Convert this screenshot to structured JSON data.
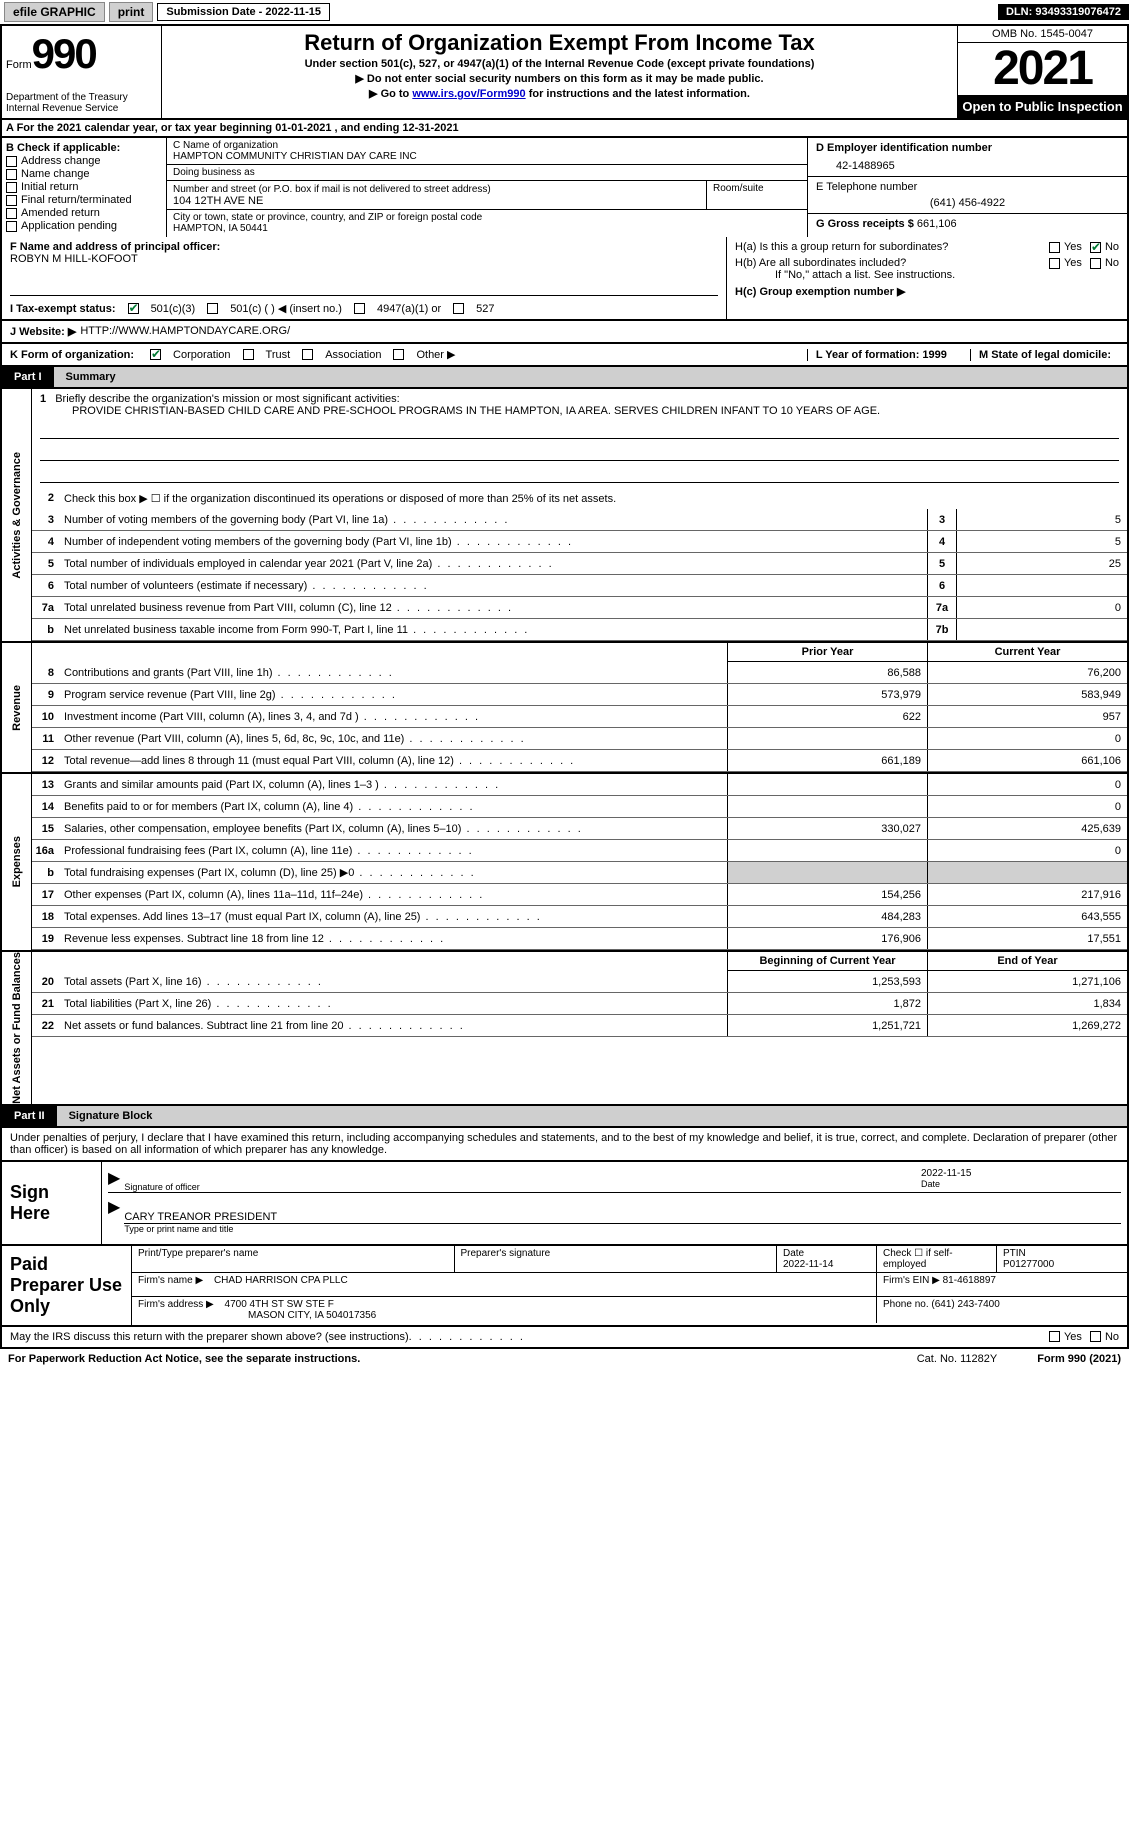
{
  "topbar": {
    "efile": "efile GRAPHIC",
    "print": "print",
    "submission_label": "Submission Date - 2022-11-15",
    "dln": "DLN: 93493319076472"
  },
  "header": {
    "form_label": "Form",
    "form_number": "990",
    "dept": "Department of the Treasury Internal Revenue Service",
    "title": "Return of Organization Exempt From Income Tax",
    "subtitle1": "Under section 501(c), 527, or 4947(a)(1) of the Internal Revenue Code (except private foundations)",
    "subtitle2": "▶ Do not enter social security numbers on this form as it may be made public.",
    "subtitle3_prefix": "▶ Go to ",
    "subtitle3_link": "www.irs.gov/Form990",
    "subtitle3_suffix": " for instructions and the latest information.",
    "omb": "OMB No. 1545-0047",
    "year": "2021",
    "open_public": "Open to Public Inspection"
  },
  "row_a": "A For the 2021 calendar year, or tax year beginning 01-01-2021    , and ending 12-31-2021",
  "section_b": {
    "label": "B Check if applicable:",
    "opts": [
      "Address change",
      "Name change",
      "Initial return",
      "Final return/terminated",
      "Amended return",
      "Application pending"
    ]
  },
  "section_c": {
    "name_label": "C Name of organization",
    "name": "HAMPTON COMMUNITY CHRISTIAN DAY CARE INC",
    "dba_label": "Doing business as",
    "dba": "",
    "addr_label": "Number and street (or P.O. box if mail is not delivered to street address)",
    "addr": "104 12TH AVE NE",
    "room_label": "Room/suite",
    "city_label": "City or town, state or province, country, and ZIP or foreign postal code",
    "city": "HAMPTON, IA  50441"
  },
  "section_d": {
    "ein_label": "D Employer identification number",
    "ein": "42-1488965",
    "phone_label": "E Telephone number",
    "phone": "(641) 456-4922",
    "gross_label": "G Gross receipts $",
    "gross": "661,106"
  },
  "section_f": {
    "label": "F Name and address of principal officer:",
    "name": "ROBYN M HILL-KOFOOT"
  },
  "section_h": {
    "ha": "H(a)  Is this a group return for subordinates?",
    "hb": "H(b)  Are all subordinates included?",
    "hb_note": "If \"No,\" attach a list. See instructions.",
    "hc": "H(c)  Group exemption number ▶",
    "yes": "Yes",
    "no": "No"
  },
  "section_i": {
    "label": "I    Tax-exempt status:",
    "opts": [
      "501(c)(3)",
      "501(c) (  ) ◀ (insert no.)",
      "4947(a)(1) or",
      "527"
    ]
  },
  "section_j": {
    "label": "J   Website: ▶",
    "url": "HTTP://WWW.HAMPTONDAYCARE.ORG/"
  },
  "section_k": {
    "label": "K Form of organization:",
    "opts": [
      "Corporation",
      "Trust",
      "Association",
      "Other ▶"
    ],
    "l": "L Year of formation: 1999",
    "m": "M State of legal domicile:"
  },
  "part1": {
    "num": "Part I",
    "title": "Summary"
  },
  "mission": {
    "num": "1",
    "label": "Briefly describe the organization's mission or most significant activities:",
    "text": "PROVIDE CHRISTIAN-BASED CHILD CARE AND PRE-SCHOOL PROGRAMS IN THE HAMPTON, IA AREA. SERVES CHILDREN INFANT TO 10 YEARS OF AGE."
  },
  "activities": {
    "tab": "Activities & Governance",
    "l2": "Check this box ▶ ☐  if the organization discontinued its operations or disposed of more than 25% of its net assets.",
    "lines": [
      {
        "n": "3",
        "t": "Number of voting members of the governing body (Part VI, line 1a)",
        "b": "3",
        "v": "5"
      },
      {
        "n": "4",
        "t": "Number of independent voting members of the governing body (Part VI, line 1b)",
        "b": "4",
        "v": "5"
      },
      {
        "n": "5",
        "t": "Total number of individuals employed in calendar year 2021 (Part V, line 2a)",
        "b": "5",
        "v": "25"
      },
      {
        "n": "6",
        "t": "Total number of volunteers (estimate if necessary)",
        "b": "6",
        "v": ""
      },
      {
        "n": "7a",
        "t": "Total unrelated business revenue from Part VIII, column (C), line 12",
        "b": "7a",
        "v": "0"
      },
      {
        "n": "b",
        "t": "Net unrelated business taxable income from Form 990-T, Part I, line 11",
        "b": "7b",
        "v": ""
      }
    ]
  },
  "revenue": {
    "tab": "Revenue",
    "hdr_prior": "Prior Year",
    "hdr_current": "Current Year",
    "lines": [
      {
        "n": "8",
        "t": "Contributions and grants (Part VIII, line 1h)",
        "p": "86,588",
        "c": "76,200"
      },
      {
        "n": "9",
        "t": "Program service revenue (Part VIII, line 2g)",
        "p": "573,979",
        "c": "583,949"
      },
      {
        "n": "10",
        "t": "Investment income (Part VIII, column (A), lines 3, 4, and 7d )",
        "p": "622",
        "c": "957"
      },
      {
        "n": "11",
        "t": "Other revenue (Part VIII, column (A), lines 5, 6d, 8c, 9c, 10c, and 11e)",
        "p": "",
        "c": "0"
      },
      {
        "n": "12",
        "t": "Total revenue—add lines 8 through 11 (must equal Part VIII, column (A), line 12)",
        "p": "661,189",
        "c": "661,106"
      }
    ]
  },
  "expenses": {
    "tab": "Expenses",
    "lines": [
      {
        "n": "13",
        "t": "Grants and similar amounts paid (Part IX, column (A), lines 1–3 )",
        "p": "",
        "c": "0"
      },
      {
        "n": "14",
        "t": "Benefits paid to or for members (Part IX, column (A), line 4)",
        "p": "",
        "c": "0"
      },
      {
        "n": "15",
        "t": "Salaries, other compensation, employee benefits (Part IX, column (A), lines 5–10)",
        "p": "330,027",
        "c": "425,639"
      },
      {
        "n": "16a",
        "t": "Professional fundraising fees (Part IX, column (A), line 11e)",
        "p": "",
        "c": "0"
      },
      {
        "n": "b",
        "t": "Total fundraising expenses (Part IX, column (D), line 25) ▶0",
        "p": "SHADE",
        "c": "SHADE"
      },
      {
        "n": "17",
        "t": "Other expenses (Part IX, column (A), lines 11a–11d, 11f–24e)",
        "p": "154,256",
        "c": "217,916"
      },
      {
        "n": "18",
        "t": "Total expenses. Add lines 13–17 (must equal Part IX, column (A), line 25)",
        "p": "484,283",
        "c": "643,555"
      },
      {
        "n": "19",
        "t": "Revenue less expenses. Subtract line 18 from line 12",
        "p": "176,906",
        "c": "17,551"
      }
    ]
  },
  "netassets": {
    "tab": "Net Assets or Fund Balances",
    "hdr_begin": "Beginning of Current Year",
    "hdr_end": "End of Year",
    "lines": [
      {
        "n": "20",
        "t": "Total assets (Part X, line 16)",
        "p": "1,253,593",
        "c": "1,271,106"
      },
      {
        "n": "21",
        "t": "Total liabilities (Part X, line 26)",
        "p": "1,872",
        "c": "1,834"
      },
      {
        "n": "22",
        "t": "Net assets or fund balances. Subtract line 21 from line 20",
        "p": "1,251,721",
        "c": "1,269,272"
      }
    ]
  },
  "part2": {
    "num": "Part II",
    "title": "Signature Block"
  },
  "sig_intro": "Under penalties of perjury, I declare that I have examined this return, including accompanying schedules and statements, and to the best of my knowledge and belief, it is true, correct, and complete. Declaration of preparer (other than officer) is based on all information of which preparer has any knowledge.",
  "sign": {
    "label": "Sign Here",
    "sig_of_officer": "Signature of officer",
    "date": "2022-11-15",
    "date_label": "Date",
    "name": "CARY TREANOR  PRESIDENT",
    "name_label": "Type or print name and title"
  },
  "preparer": {
    "label": "Paid Preparer Use Only",
    "print_label": "Print/Type preparer's name",
    "sig_label": "Preparer's signature",
    "date_label": "Date",
    "date": "2022-11-14",
    "check_label": "Check ☐ if self-employed",
    "ptin_label": "PTIN",
    "ptin": "P01277000",
    "firm_name_label": "Firm's name    ▶",
    "firm_name": "CHAD HARRISON CPA PLLC",
    "firm_ein_label": "Firm's EIN ▶",
    "firm_ein": "81-4618897",
    "firm_addr_label": "Firm's address ▶",
    "firm_addr1": "4700 4TH ST SW STE F",
    "firm_addr2": "MASON CITY, IA  504017356",
    "phone_label": "Phone no.",
    "phone": "(641) 243-7400"
  },
  "footer": {
    "discuss": "May the IRS discuss this return with the preparer shown above? (see instructions)",
    "yes": "Yes",
    "no": "No",
    "paperwork": "For Paperwork Reduction Act Notice, see the separate instructions.",
    "cat": "Cat. No. 11282Y",
    "form": "Form 990 (2021)"
  }
}
